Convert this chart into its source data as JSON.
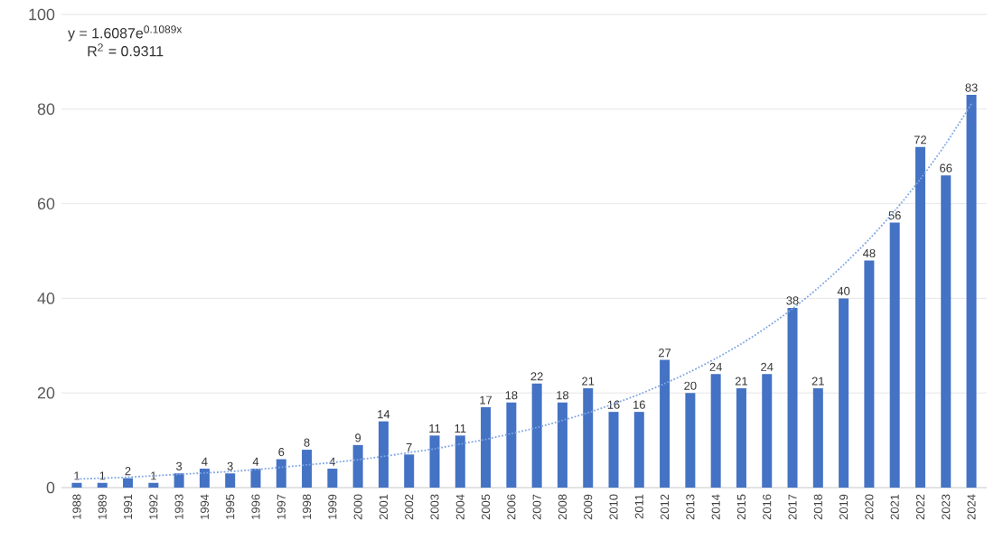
{
  "chart_data": {
    "type": "bar",
    "categories": [
      "1988",
      "1989",
      "1991",
      "1992",
      "1993",
      "1994",
      "1995",
      "1996",
      "1997",
      "1998",
      "1999",
      "2000",
      "2001",
      "2002",
      "2003",
      "2004",
      "2005",
      "2006",
      "2007",
      "2008",
      "2009",
      "2010",
      "2011",
      "2012",
      "2013",
      "2014",
      "2015",
      "2016",
      "2017",
      "2018",
      "2019",
      "2020",
      "2021",
      "2022",
      "2023",
      "2024"
    ],
    "series": [
      {
        "color": "#4472c4",
        "values": [
          1,
          1,
          2,
          1,
          3,
          4,
          3,
          4,
          6,
          8,
          4,
          9,
          14,
          7,
          11,
          11,
          17,
          18,
          22,
          18,
          21,
          16,
          16,
          27,
          20,
          24,
          21,
          24,
          38,
          21,
          40,
          48,
          56,
          72,
          66,
          83
        ],
        "value_labels": [
          "1",
          "1",
          "2",
          "1",
          "3",
          "4",
          "3",
          "4",
          "6",
          "8",
          "4",
          "9",
          "14",
          "7",
          "11",
          "11",
          "17",
          "18",
          "22",
          "18",
          "21",
          "16",
          "16",
          "27",
          "20",
          "24",
          "21",
          "24",
          "38",
          "21",
          "40",
          "48",
          "56",
          "72",
          "66",
          "83"
        ]
      },
      {
        "type": "line",
        "color": "#7fa6e3",
        "line_style": "dotted",
        "marker": "none",
        "values": [
          1.8,
          2.0,
          2.2,
          2.5,
          2.8,
          3.1,
          3.4,
          3.8,
          4.3,
          4.8,
          5.3,
          5.9,
          6.6,
          7.4,
          8.2,
          9.2,
          10.2,
          11.4,
          12.7,
          14.2,
          15.8,
          17.7,
          19.7,
          22.0,
          24.5,
          27.3,
          30.4,
          33.9,
          37.8,
          42.2,
          47.1,
          52.5,
          58.5,
          65.2,
          72.7,
          81.1
        ]
      }
    ],
    "ylim": [
      0,
      100
    ],
    "yticks": [
      0,
      20,
      40,
      60,
      80,
      100
    ],
    "grid": "y",
    "annotations": [
      "y = 1.6087e$^{0.1089x}$",
      "R$^{2}$ = 0.9311"
    ]
  }
}
